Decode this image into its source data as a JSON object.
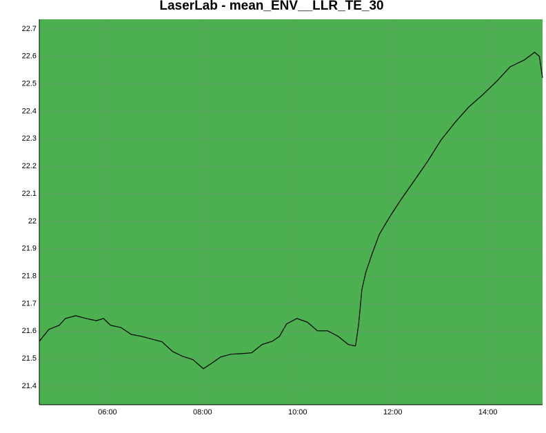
{
  "chart_data": {
    "type": "line",
    "title": "LaserLab - mean_ENV__LLR_TE_30",
    "x": [
      274,
      286,
      299,
      307,
      320,
      333,
      346,
      355,
      364,
      377,
      390,
      403,
      416,
      429,
      442,
      455,
      468,
      481,
      490,
      503,
      516,
      529,
      542,
      555,
      568,
      577,
      586,
      599,
      612,
      625,
      638,
      651,
      664,
      673,
      677,
      681,
      686,
      694,
      703,
      716,
      729,
      746,
      764,
      781,
      799,
      816,
      833,
      851,
      868,
      886,
      899,
      905,
      909
    ],
    "series": [
      {
        "name": "mean_ENV__LLR_TE_30",
        "color": "#000000",
        "values": [
          21.563,
          21.606,
          21.621,
          21.646,
          21.656,
          21.646,
          21.638,
          21.646,
          21.621,
          21.613,
          21.588,
          21.581,
          21.571,
          21.561,
          21.526,
          21.508,
          21.496,
          21.463,
          21.48,
          21.506,
          21.516,
          21.518,
          21.521,
          21.551,
          21.563,
          21.581,
          21.626,
          21.646,
          21.633,
          21.601,
          21.601,
          21.581,
          21.551,
          21.546,
          21.626,
          21.751,
          21.814,
          21.882,
          21.952,
          22.015,
          22.073,
          22.143,
          22.218,
          22.296,
          22.361,
          22.416,
          22.459,
          22.509,
          22.562,
          22.587,
          22.615,
          22.6,
          22.522
        ]
      }
    ],
    "xlim": [
      274,
      909
    ],
    "xticks": [
      {
        "value": 360,
        "label": "06:00"
      },
      {
        "value": 480,
        "label": "08:00"
      },
      {
        "value": 600,
        "label": "10:00"
      },
      {
        "value": 720,
        "label": "12:00"
      },
      {
        "value": 840,
        "label": "14:00"
      }
    ],
    "ylim": [
      21.332,
      22.735
    ],
    "yticks": [
      21.4,
      21.5,
      21.6,
      21.7,
      21.8,
      21.9,
      22,
      22.1,
      22.2,
      22.3,
      22.4,
      22.5,
      22.6,
      22.7
    ],
    "grid": true,
    "background": "#4caf50"
  }
}
